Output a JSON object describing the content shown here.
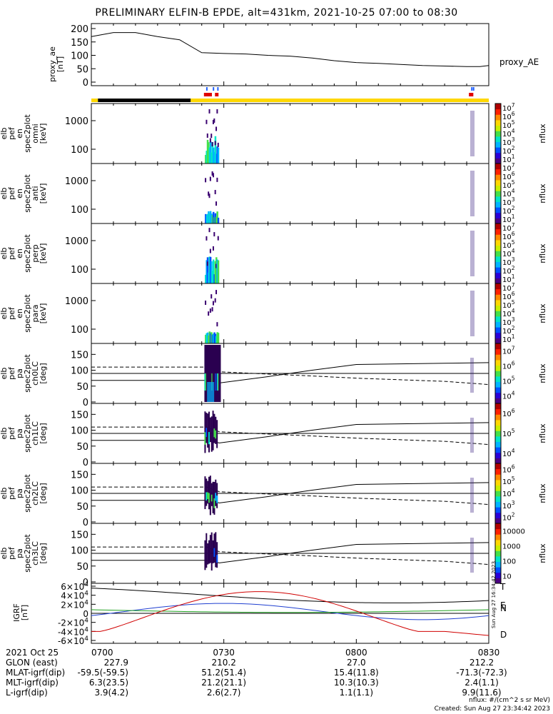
{
  "title": "PRELIMINARY ELFIN-B EPDE, alt=431km, 2021-10-25 07:00 to 08:30",
  "chart_data": [
    {
      "type": "line",
      "id": "proxy_ae",
      "ylabel": "proxy_ae [nT]",
      "legend": "proxy_AE",
      "ylim": [
        0,
        200
      ],
      "yticks": [
        0,
        50,
        100,
        150,
        200
      ],
      "x_minutes": [
        0,
        5,
        10,
        15,
        20,
        25,
        30,
        35,
        40,
        45,
        50,
        55,
        60,
        65,
        70,
        75,
        80,
        85,
        88,
        90
      ],
      "values": [
        170,
        185,
        185,
        170,
        158,
        110,
        107,
        105,
        100,
        97,
        90,
        80,
        73,
        70,
        66,
        62,
        60,
        58,
        58,
        62
      ]
    },
    {
      "type": "bar",
      "id": "status_bar",
      "segments": [
        {
          "from": 0,
          "to": 1.5,
          "color": "#ffd700"
        },
        {
          "from": 1.5,
          "to": 22.5,
          "color": "#000000"
        },
        {
          "from": 22.5,
          "to": 90,
          "color": "#ffd700"
        }
      ],
      "red_marks": [
        [
          25.5,
          27.3
        ],
        [
          28.0,
          28.8
        ],
        [
          85.5,
          86.5
        ]
      ],
      "blue_ticks": [
        26.0,
        27.5,
        28.5,
        86.0,
        86.4
      ]
    },
    {
      "type": "heatmap",
      "id": "elb_pef_en_spec2plot_omni",
      "ylabel": "elb pef en spec2plot omni [keV]",
      "yticks": [
        100,
        1000
      ],
      "colorbar_label": "nflux",
      "colorbar_ticks": [
        "10^1",
        "10^2",
        "10^3",
        "10^4",
        "10^5",
        "10^6",
        "10^7"
      ]
    },
    {
      "type": "heatmap",
      "id": "elb_pef_en_spec2plot_anti",
      "ylabel": "elb pef en spec2plot anti [keV]",
      "yticks": [
        100,
        1000
      ],
      "colorbar_label": "nflux",
      "colorbar_ticks": [
        "10^1",
        "10^2",
        "10^3",
        "10^4",
        "10^5",
        "10^6",
        "10^7"
      ]
    },
    {
      "type": "heatmap",
      "id": "elb_pef_en_spec2plot_perp",
      "ylabel": "elb pef en spec2plot perp [keV]",
      "yticks": [
        100,
        1000
      ],
      "colorbar_label": "nflux",
      "colorbar_ticks": [
        "10^1",
        "10^2",
        "10^3",
        "10^4",
        "10^5",
        "10^6",
        "10^7"
      ]
    },
    {
      "type": "heatmap",
      "id": "elb_pef_en_spec2plot_para",
      "ylabel": "elb pef en spec2plot para [keV]",
      "yticks": [
        100,
        1000
      ],
      "colorbar_label": "nflux",
      "colorbar_ticks": [
        "10^1",
        "10^2",
        "10^3",
        "10^4",
        "10^5",
        "10^6",
        "10^7"
      ]
    },
    {
      "type": "heatmap",
      "id": "elb_pef_pa_spec2plot_ch0LC",
      "ylabel": "elb pef pa spec2plot ch0LC [deg]",
      "ylim": [
        0,
        180
      ],
      "yticks": [
        0,
        50,
        100,
        150
      ],
      "colorbar_label": "nflux",
      "colorbar_ticks": [
        "10^4",
        "10^5",
        "10^6",
        "10^7"
      ]
    },
    {
      "type": "heatmap",
      "id": "elb_pef_pa_spec2plot_ch1LC",
      "ylabel": "elb pef pa spec2plot ch1LC [deg]",
      "ylim": [
        0,
        180
      ],
      "yticks": [
        0,
        50,
        100,
        150
      ],
      "colorbar_label": "nflux",
      "colorbar_ticks": [
        "10^4",
        "10^5",
        "10^6"
      ]
    },
    {
      "type": "heatmap",
      "id": "elb_pef_pa_spec2plot_ch2LC",
      "ylabel": "elb pef pa spec2plot ch2LC [deg]",
      "ylim": [
        0,
        180
      ],
      "yticks": [
        0,
        50,
        100,
        150
      ],
      "colorbar_label": "nflux",
      "colorbar_ticks": [
        "10^2",
        "10^3",
        "10^4",
        "10^5",
        "10^6"
      ]
    },
    {
      "type": "heatmap",
      "id": "elb_pef_pa_spec2plot_ch3LC",
      "ylabel": "elb pef pa spec2plot ch3LC [deg]",
      "ylim": [
        0,
        180
      ],
      "yticks": [
        0,
        50,
        100,
        150
      ],
      "colorbar_label": "nflux",
      "colorbar_ticks": [
        "10",
        "100",
        "1000",
        "10000"
      ]
    },
    {
      "type": "line",
      "id": "igrf",
      "ylabel": "IGRF [nT]",
      "ylim": [
        -60000,
        60000
      ],
      "yticks": [
        "-6×10^4",
        "-4×10^4",
        "-2×10^4",
        "0",
        "2×10^4",
        "4×10^4",
        "6×10^4"
      ],
      "series": [
        {
          "name": "T",
          "color": "#000000"
        },
        {
          "name": "N",
          "color": "#1f3fd0"
        },
        {
          "name": "E",
          "color": "#1fa020"
        },
        {
          "name": "D",
          "color": "#d00000"
        }
      ]
    }
  ],
  "footer": {
    "time_label": "2021 Oct 25",
    "time_ticks": [
      "0700",
      "0730",
      "0800",
      "0830"
    ],
    "rows": [
      {
        "label": "GLON (east)",
        "values": [
          "227.9",
          "210.2",
          "27.0",
          "212.2"
        ]
      },
      {
        "label": "MLAT-igrf(dip)",
        "values": [
          "-59.5(-59.5)",
          "51.2(51.4)",
          "15.4(11.8)",
          "-71.3(-72.3)"
        ]
      },
      {
        "label": "MLT-igrf(dip)",
        "values": [
          "6.3(23.5)",
          "21.2(21.1)",
          "10.3(10.3)",
          "2.4(1.1)"
        ]
      },
      {
        "label": "L-igrf(dip)",
        "values": [
          "3.9(4.2)",
          "2.6(2.7)",
          "1.1(1.1)",
          "9.9(11.6)"
        ]
      }
    ],
    "units_note": "nflux: #/(cm^2 s sr MeV)",
    "created": "Created: Sun Aug 27 23:34:42 2023",
    "side_stamp": "Sun Aug 27 16:34:42 2023"
  }
}
